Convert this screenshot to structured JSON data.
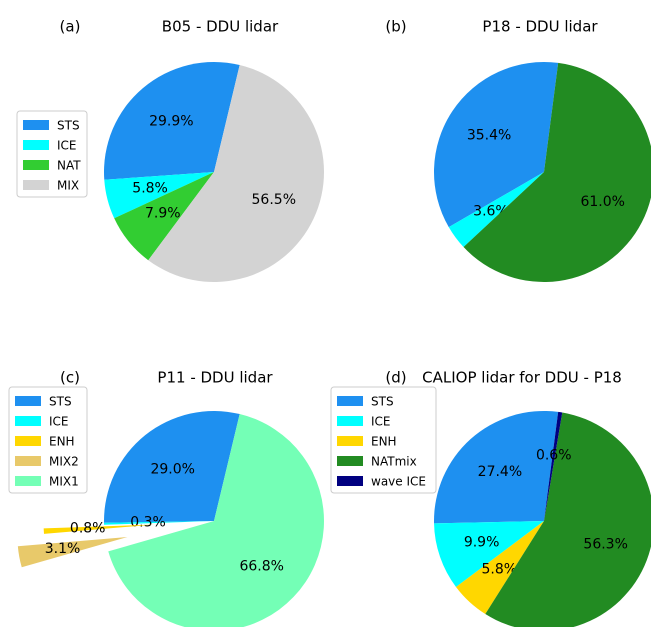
{
  "chart_data": [
    {
      "type": "pie",
      "panel_label": "(a)",
      "title": "B05 - DDU lidar",
      "legend_placement": "left",
      "slices": [
        {
          "name": "STS",
          "value": 29.9,
          "label": "29.9%",
          "color": "#1e90f0"
        },
        {
          "name": "ICE",
          "value": 5.8,
          "label": "5.8%",
          "color": "#00ffff"
        },
        {
          "name": "NAT",
          "value": 7.9,
          "label": "7.9%",
          "color": "#32cd32"
        },
        {
          "name": "MIX",
          "value": 56.5,
          "label": "56.5%",
          "color": "#d3d3d3"
        }
      ]
    },
    {
      "type": "pie",
      "panel_label": "(b)",
      "title": "P18 - DDU lidar",
      "legend_placement": "none",
      "slices": [
        {
          "name": "STS",
          "value": 35.4,
          "label": "35.4%",
          "color": "#1e90f0"
        },
        {
          "name": "ICE",
          "value": 3.6,
          "label": "3.6%",
          "color": "#00ffff"
        },
        {
          "name": "NAT",
          "value": 61.0,
          "label": "61.0%",
          "color": "#228b22"
        }
      ]
    },
    {
      "type": "pie",
      "panel_label": "(c)",
      "title": "P11 - DDU lidar",
      "legend_placement": "upper-left",
      "slices": [
        {
          "name": "STS",
          "value": 29.0,
          "label": "29.0%",
          "color": "#1e90f0"
        },
        {
          "name": "ICE",
          "value": 0.3,
          "label": "0.3%",
          "color": "#00ffff"
        },
        {
          "name": "ENH",
          "value": 0.8,
          "label": "0.8%",
          "color": "#ffd700",
          "explode": 0.55
        },
        {
          "name": "MIX2",
          "value": 3.1,
          "label": "3.1%",
          "color": "#e8c96a",
          "explode": 0.8
        },
        {
          "name": "MIX1",
          "value": 66.8,
          "label": "66.8%",
          "color": "#74ffb6"
        }
      ]
    },
    {
      "type": "pie",
      "panel_label": "(d)",
      "title": "CALIOP lidar for DDU - P18",
      "legend_placement": "upper-left",
      "slices": [
        {
          "name": "STS",
          "value": 27.4,
          "label": "27.4%",
          "color": "#1e90f0"
        },
        {
          "name": "ICE",
          "value": 9.9,
          "label": "9.9%",
          "color": "#00ffff"
        },
        {
          "name": "ENH",
          "value": 5.8,
          "label": "5.8%",
          "color": "#ffd700"
        },
        {
          "name": "NATmix",
          "value": 56.3,
          "label": "56.3%",
          "color": "#228b22"
        },
        {
          "name": "wave ICE",
          "value": 0.6,
          "label": "0.6%",
          "color": "#000080"
        }
      ]
    }
  ]
}
